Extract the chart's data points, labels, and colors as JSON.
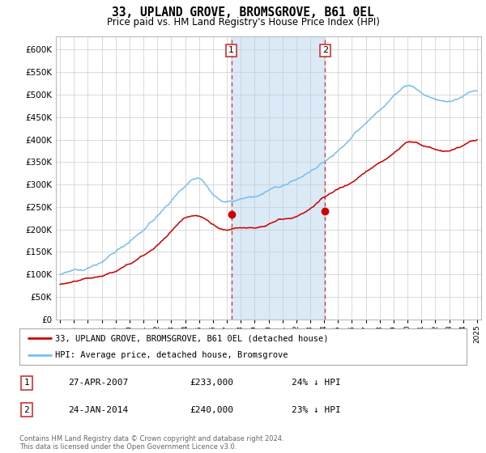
{
  "title": "33, UPLAND GROVE, BROMSGROVE, B61 0EL",
  "subtitle": "Price paid vs. HM Land Registry's House Price Index (HPI)",
  "ylim": [
    0,
    630000
  ],
  "yticks": [
    0,
    50000,
    100000,
    150000,
    200000,
    250000,
    300000,
    350000,
    400000,
    450000,
    500000,
    550000,
    600000
  ],
  "xlim_start": 1994.7,
  "xlim_end": 2025.3,
  "hpi_color": "#7bbfea",
  "price_color": "#cc0000",
  "highlight_color": "#daeaf7",
  "highlight_start": 2007.3,
  "highlight_end": 2014.07,
  "marker1_x": 2007.32,
  "marker1_y": 233000,
  "marker2_x": 2014.07,
  "marker2_y": 240000,
  "legend_line1": "33, UPLAND GROVE, BROMSGROVE, B61 0EL (detached house)",
  "legend_line2": "HPI: Average price, detached house, Bromsgrove",
  "table_row1": [
    "1",
    "27-APR-2007",
    "£233,000",
    "24% ↓ HPI"
  ],
  "table_row2": [
    "2",
    "24-JAN-2014",
    "£240,000",
    "23% ↓ HPI"
  ],
  "footer": "Contains HM Land Registry data © Crown copyright and database right 2024.\nThis data is licensed under the Open Government Licence v3.0.",
  "bg_color": "#ffffff",
  "grid_color": "#cccccc",
  "hpi_seed_vals": [
    100000,
    105000,
    115000,
    130000,
    150000,
    175000,
    200000,
    230000,
    265000,
    300000,
    320000,
    290000,
    270000,
    275000,
    280000,
    290000,
    300000,
    315000,
    335000,
    355000,
    380000,
    410000,
    440000,
    470000,
    500000,
    525000,
    510000,
    495000,
    490000,
    500000,
    510000
  ],
  "price_seed_vals": [
    78000,
    82000,
    88000,
    95000,
    105000,
    120000,
    140000,
    165000,
    195000,
    225000,
    233000,
    215000,
    200000,
    205000,
    210000,
    220000,
    235000,
    240000,
    255000,
    275000,
    295000,
    310000,
    335000,
    355000,
    375000,
    400000,
    395000,
    385000,
    380000,
    390000,
    400000
  ]
}
